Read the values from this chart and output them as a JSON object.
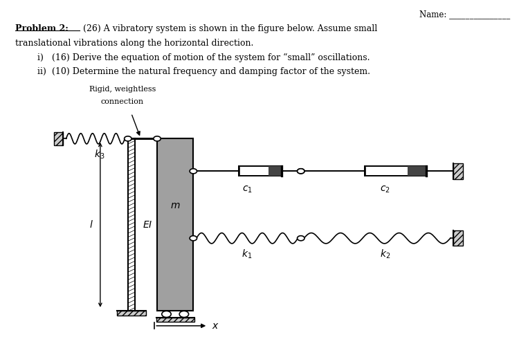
{
  "bg_color": "#ffffff",
  "label_rigid": "Rigid, weightless",
  "label_connection": "connection",
  "mass_fill": "#a0a0a0",
  "problem_bold": "Problem 2:",
  "problem_rest": " (26) A vibratory system is shown in the figure below. Assume small",
  "problem_line2": "translational vibrations along the horizontal direction.",
  "problem_line3": "   i)   (16) Derive the equation of motion of the system for “small” oscillations.",
  "problem_line4": "   ii)  (10) Determine the natural frequency and damping factor of the system.",
  "name_line": "Name: _______________"
}
